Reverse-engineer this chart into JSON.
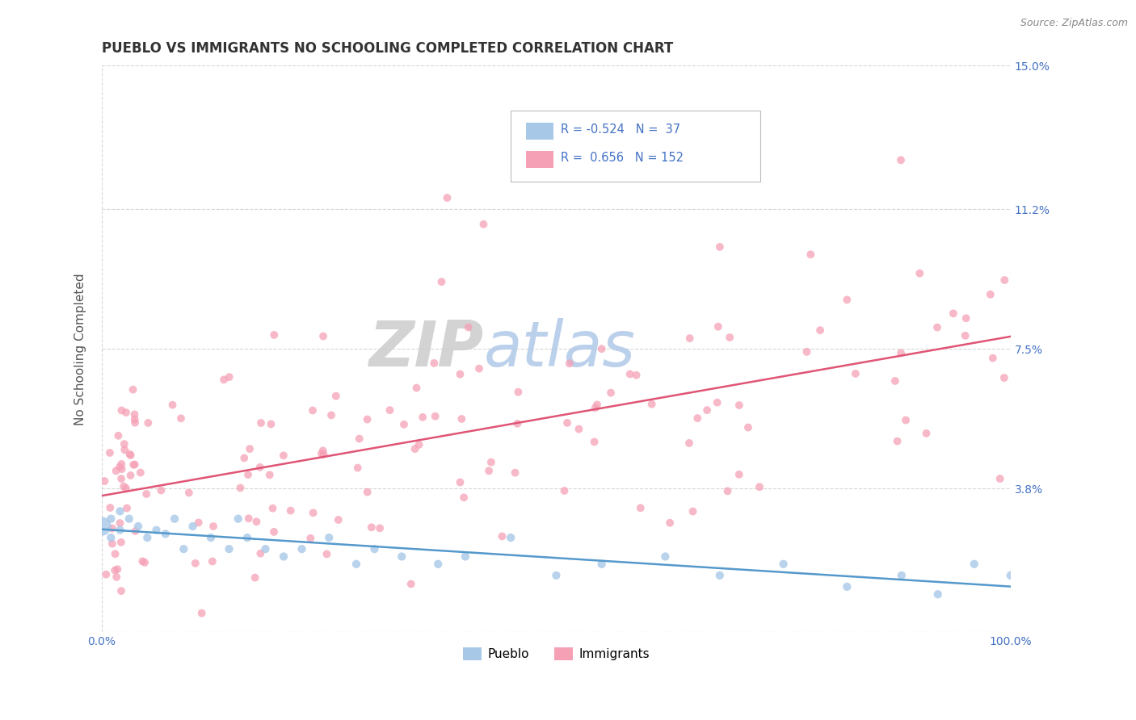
{
  "title": "PUEBLO VS IMMIGRANTS NO SCHOOLING COMPLETED CORRELATION CHART",
  "source": "Source: ZipAtlas.com",
  "ylabel": "No Schooling Completed",
  "pueblo_color": "#a8c8e8",
  "immigrants_color": "#f5a0b5",
  "pueblo_line_color": "#5599cc",
  "immigrants_line_color": "#e05575",
  "watermark_ZIP": "ZIP",
  "watermark_atlas": "atlas",
  "legend_R_pueblo": "-0.524",
  "legend_N_pueblo": "37",
  "legend_R_immigrants": "0.656",
  "legend_N_immigrants": "152",
  "title_color": "#333333",
  "tick_color": "#4472C4",
  "ylabel_color": "#555555"
}
